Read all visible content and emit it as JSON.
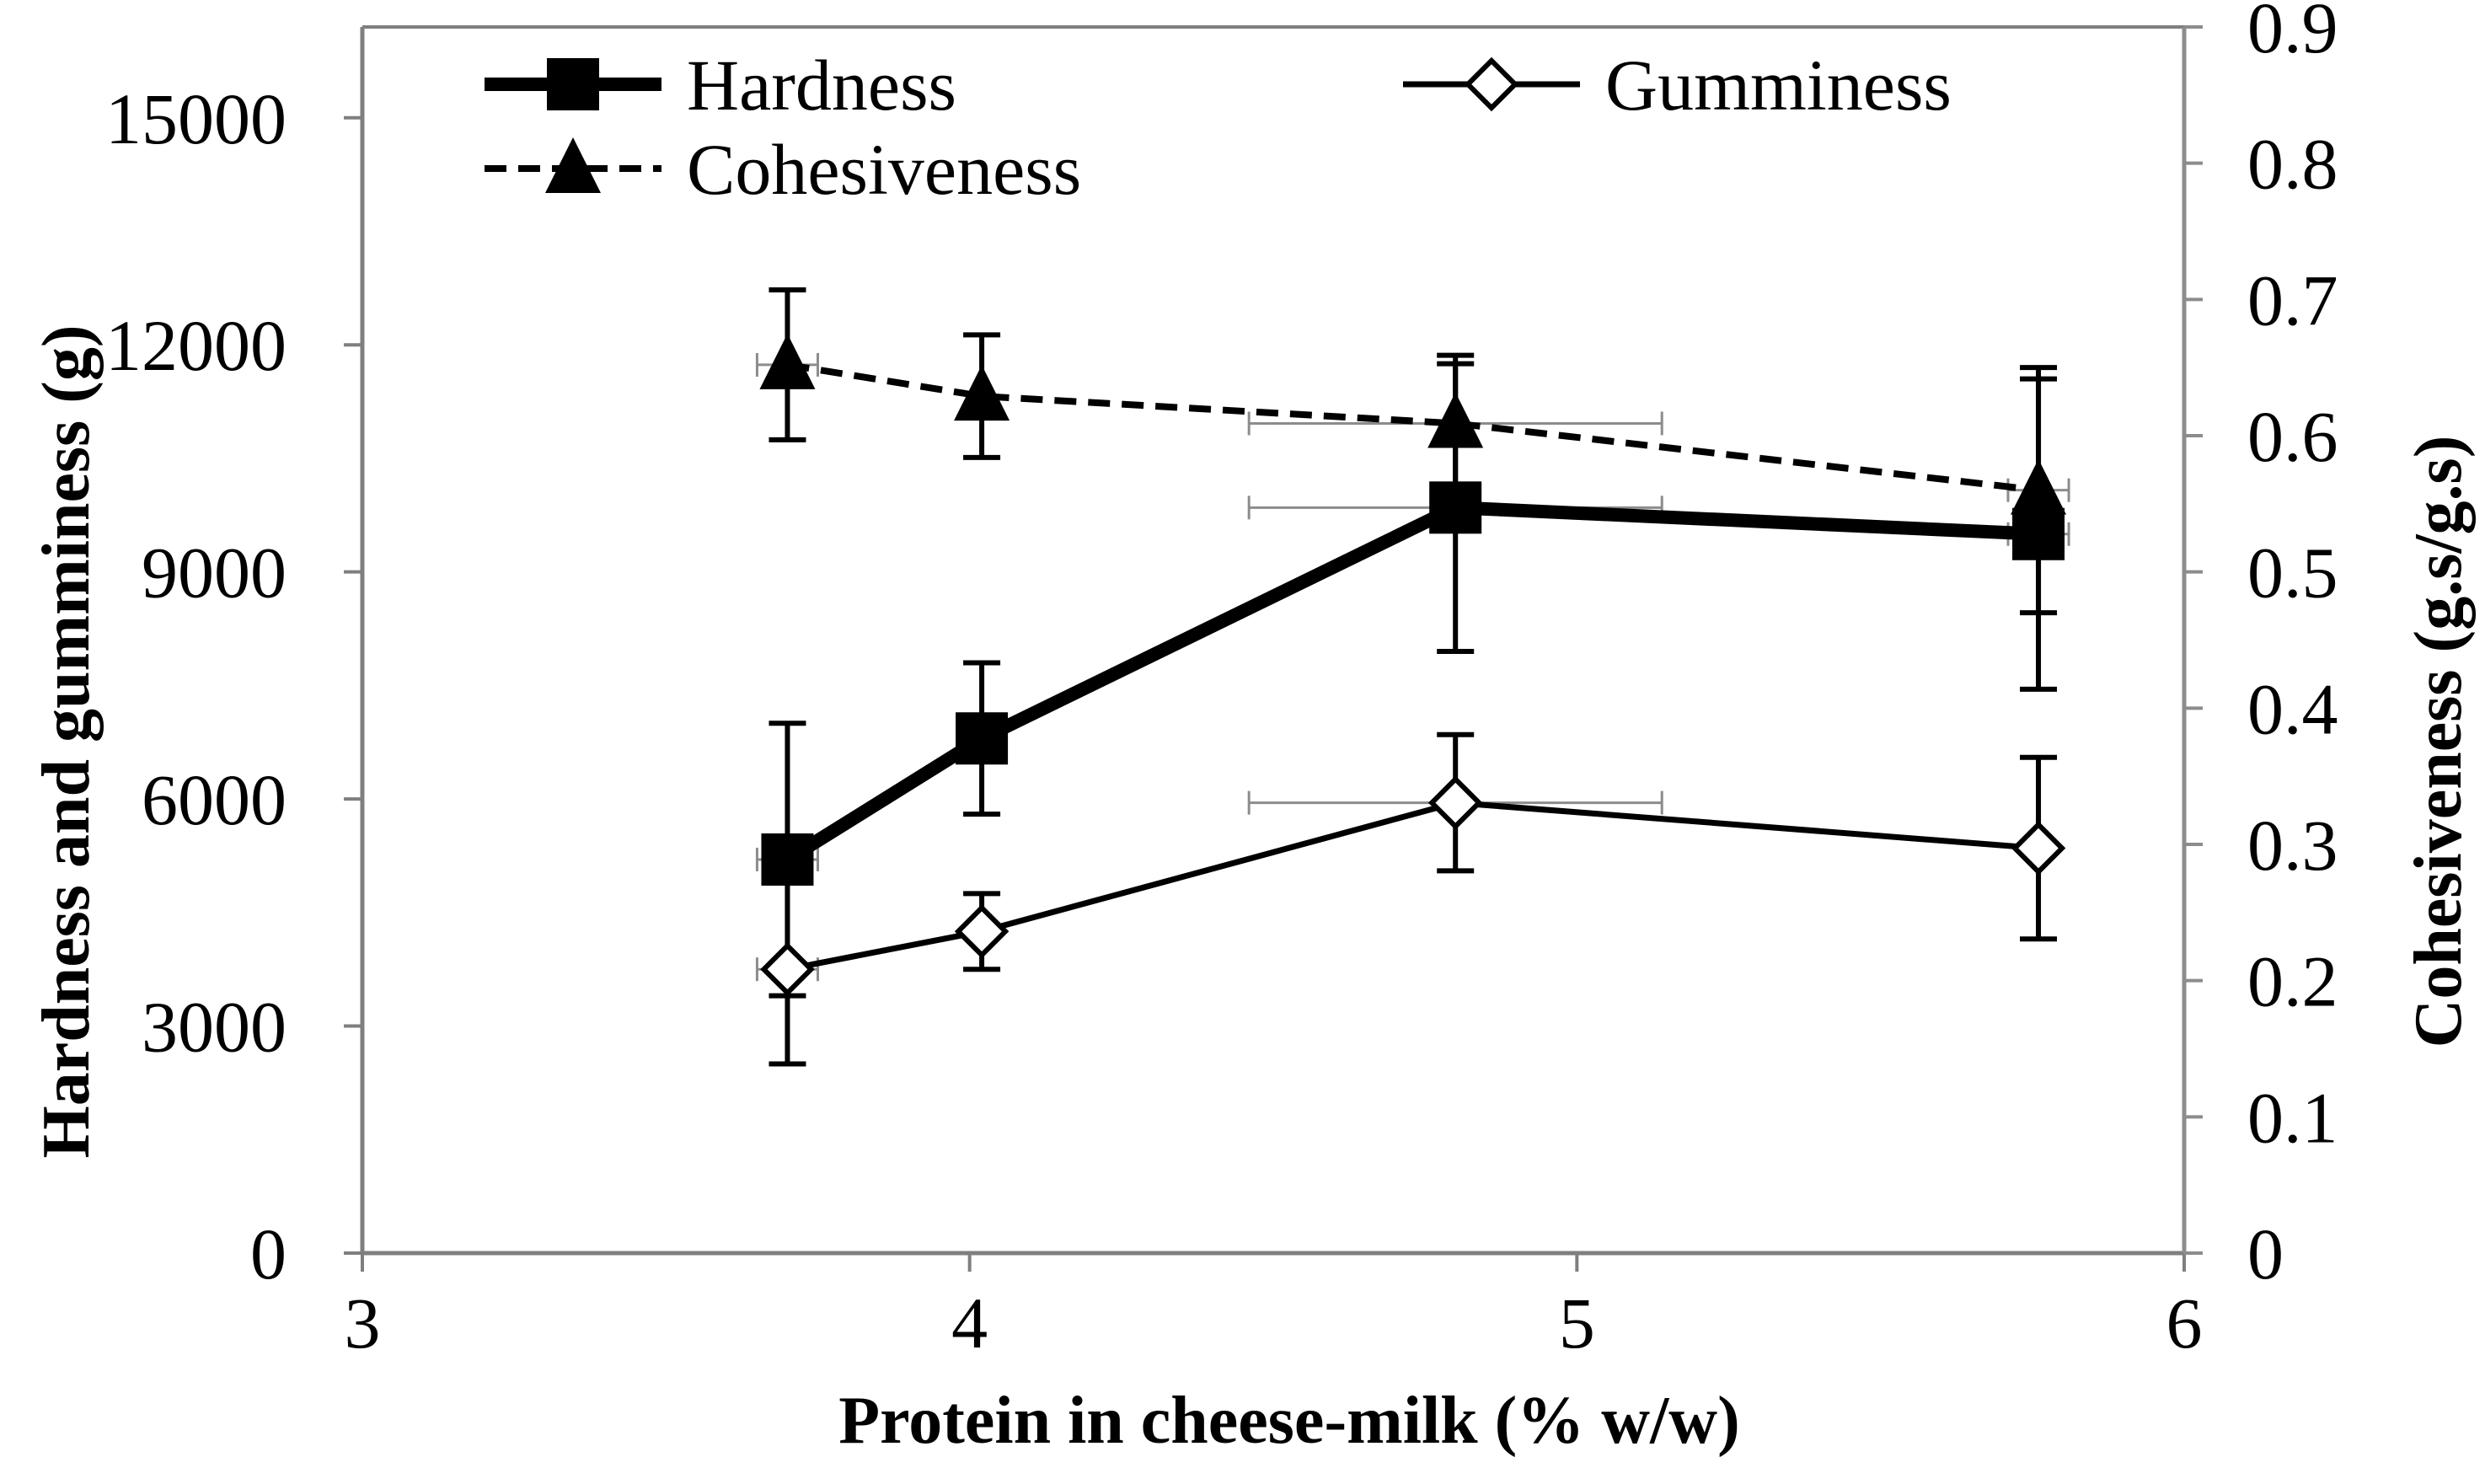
{
  "chart_data": {
    "type": "line",
    "title": "",
    "xlabel": "Protein in cheese-milk (% w/w)",
    "ylabel_left": "Hardness and gumminess (g)",
    "ylabel_right": "Cohesiveness (g.s/g.s)",
    "xlim": [
      3,
      6
    ],
    "ylim_left": [
      0,
      16200
    ],
    "ylim_right": [
      0,
      0.9
    ],
    "x_ticks": [
      3,
      4,
      5,
      6
    ],
    "x_tick_labels": [
      "3",
      "4",
      "5",
      "6"
    ],
    "y_left_ticks": [
      0,
      3000,
      6000,
      9000,
      12000,
      15000
    ],
    "y_left_tick_labels": [
      "0",
      "3000",
      "6000",
      "9000",
      "12000",
      "15000"
    ],
    "y_right_ticks": [
      0,
      0.1,
      0.2,
      0.3,
      0.4,
      0.5,
      0.6,
      0.7,
      0.8,
      0.9
    ],
    "y_right_tick_labels": [
      "0",
      "0.1",
      "0.2",
      "0.3",
      "0.4",
      "0.5",
      "0.6",
      "0.7",
      "0.8",
      "0.9"
    ],
    "grid": false,
    "legend_position": "top",
    "series": [
      {
        "name": "Hardness",
        "axis": "left",
        "marker": "square",
        "line_style": "solid-thick",
        "x": [
          3.7,
          4.02,
          4.8,
          5.76
        ],
        "y": [
          5200,
          6800,
          9850,
          9500
        ],
        "y_err": [
          1800,
          1000,
          1900,
          2050
        ],
        "x_err": [
          0.05,
          0.0,
          0.34,
          0.05
        ]
      },
      {
        "name": "Gumminess",
        "axis": "left",
        "marker": "diamond-open",
        "line_style": "solid",
        "x": [
          3.7,
          4.02,
          4.8,
          5.76
        ],
        "y": [
          3750,
          4250,
          5950,
          5350
        ],
        "y_err": [
          1250,
          500,
          900,
          1200
        ],
        "x_err": [
          0.05,
          0.0,
          0.34,
          0.0
        ]
      },
      {
        "name": "Cohesiveness",
        "axis": "right",
        "marker": "triangle",
        "line_style": "dashed",
        "x": [
          3.7,
          4.02,
          4.8,
          5.76
        ],
        "y": [
          0.652,
          0.629,
          0.609,
          0.56
        ],
        "y_err": [
          0.055,
          0.045,
          0.05,
          0.09
        ],
        "x_err": [
          0.05,
          0.0,
          0.34,
          0.05
        ]
      }
    ]
  },
  "colors": {
    "series": "#000000",
    "x_error_bars": "#8c8c8c",
    "right_axis": "#8c8c8c",
    "frame": "#7f7f7f"
  }
}
